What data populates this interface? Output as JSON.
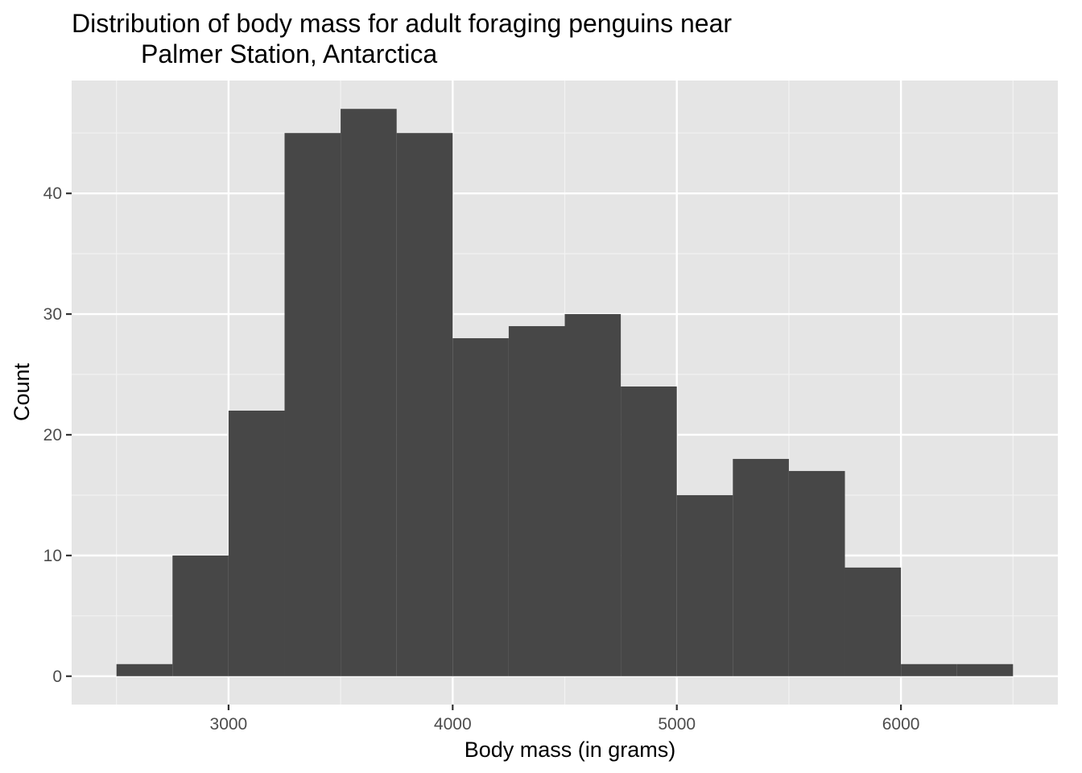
{
  "chart_data": {
    "type": "histogram",
    "title_lines": [
      "Distribution of body mass for adult foraging penguins near",
      "Palmer Station, Antarctica"
    ],
    "xlabel": "Body mass (in grams)",
    "ylabel": "Count",
    "bin_width": 250,
    "bins": [
      {
        "start": 2500,
        "end": 2750,
        "count": 1
      },
      {
        "start": 2750,
        "end": 3000,
        "count": 10
      },
      {
        "start": 3000,
        "end": 3250,
        "count": 22
      },
      {
        "start": 3250,
        "end": 3500,
        "count": 45
      },
      {
        "start": 3500,
        "end": 3750,
        "count": 47
      },
      {
        "start": 3750,
        "end": 4000,
        "count": 45
      },
      {
        "start": 4000,
        "end": 4250,
        "count": 28
      },
      {
        "start": 4250,
        "end": 4500,
        "count": 29
      },
      {
        "start": 4500,
        "end": 4750,
        "count": 30
      },
      {
        "start": 4750,
        "end": 5000,
        "count": 24
      },
      {
        "start": 5000,
        "end": 5250,
        "count": 15
      },
      {
        "start": 5250,
        "end": 5500,
        "count": 18
      },
      {
        "start": 5500,
        "end": 5750,
        "count": 17
      },
      {
        "start": 5750,
        "end": 6000,
        "count": 9
      },
      {
        "start": 6000,
        "end": 6250,
        "count": 1
      },
      {
        "start": 6250,
        "end": 6500,
        "count": 1
      }
    ],
    "x_ticks": [
      3000,
      4000,
      5000,
      6000
    ],
    "y_ticks": [
      0,
      10,
      20,
      30,
      40
    ],
    "xlim": [
      2300,
      6700
    ],
    "ylim": [
      -2.35,
      49.35
    ],
    "grid": true,
    "colors": {
      "bar": "#474747",
      "panel": "#e5e5e5",
      "grid_major": "#ffffff",
      "grid_minor": "#f2f2f2",
      "tick_text": "#4d4d4d",
      "text": "#000000"
    }
  }
}
